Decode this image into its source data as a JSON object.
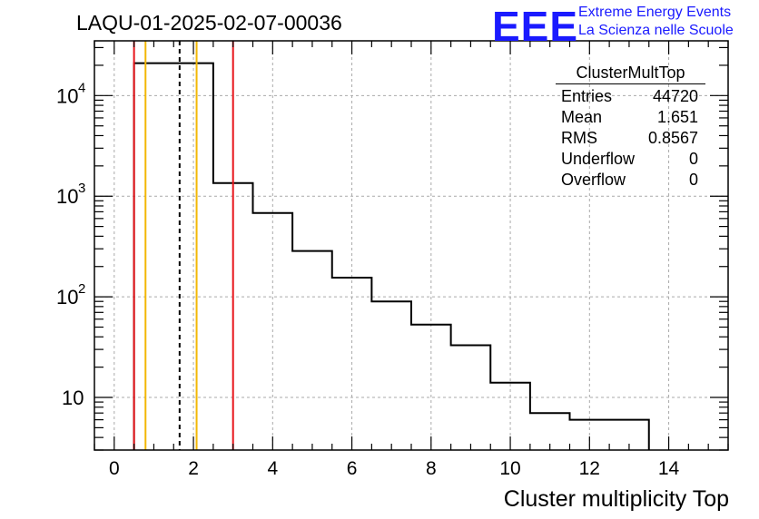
{
  "header": {
    "run_title": "LAQU-01-2025-02-07-00036",
    "logo_text": "EEE",
    "logo_line1": "Extreme Energy Events",
    "logo_line2": "La Scienza nelle Scuole",
    "logo_color": "#1a1aff"
  },
  "stats_box": {
    "name": "ClusterMultTop",
    "rows": [
      {
        "label": "Entries",
        "value": "44720"
      },
      {
        "label": "Mean",
        "value": "1.651"
      },
      {
        "label": "RMS",
        "value": "0.8567"
      },
      {
        "label": "Underflow",
        "value": "0"
      },
      {
        "label": "Overflow",
        "value": "0"
      }
    ]
  },
  "chart_data": {
    "type": "histogram",
    "title": "LAQU-01-2025-02-07-00036",
    "xlabel": "Cluster multiplicity Top",
    "ylabel": "",
    "xlim": [
      -0.5,
      15.5
    ],
    "ylim": [
      3,
      35000
    ],
    "yscale": "log",
    "grid": true,
    "bin_edges": [
      0.5,
      1.5,
      2.5,
      3.5,
      4.5,
      5.5,
      6.5,
      7.5,
      8.5,
      9.5,
      10.5,
      11.5,
      12.5,
      13.5
    ],
    "counts": [
      21000,
      21000,
      1350,
      680,
      285,
      155,
      90,
      53,
      33,
      14,
      7,
      6,
      6
    ],
    "x_ticks": [
      0,
      2,
      4,
      6,
      8,
      10,
      12,
      14
    ],
    "y_ticks": [
      {
        "value": 10,
        "label": "10"
      },
      {
        "value": 100,
        "label": "10",
        "exp": "2"
      },
      {
        "value": 1000,
        "label": "10",
        "exp": "3"
      },
      {
        "value": 10000,
        "label": "10",
        "exp": "4"
      }
    ],
    "markers": [
      {
        "x": 0.5,
        "color": "#e8141a",
        "style": "solid"
      },
      {
        "x": 0.79,
        "color": "#f2b705",
        "style": "solid"
      },
      {
        "x": 1.651,
        "color": "#000000",
        "style": "dashed"
      },
      {
        "x": 2.08,
        "color": "#f2b705",
        "style": "solid"
      },
      {
        "x": 3.0,
        "color": "#e8141a",
        "style": "solid"
      }
    ]
  }
}
